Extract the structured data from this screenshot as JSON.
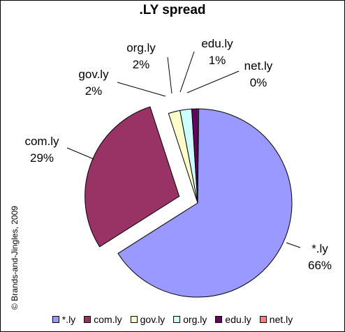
{
  "chart_data": {
    "type": "pie",
    "title": ".LY spread",
    "copyright": "© Brands-and-Jingles, 2009",
    "slices": [
      {
        "label": "*.ly",
        "value": 66,
        "value_label": "66%",
        "color": "#9999ff",
        "exploded": false
      },
      {
        "label": "com.ly",
        "value": 29,
        "value_label": "29%",
        "color": "#993366",
        "exploded": true
      },
      {
        "label": "gov.ly",
        "value": 2,
        "value_label": "2%",
        "color": "#ffffcc",
        "exploded": false
      },
      {
        "label": "org.ly",
        "value": 2,
        "value_label": "2%",
        "color": "#ccffff",
        "exploded": false
      },
      {
        "label": "edu.ly",
        "value": 1,
        "value_label": "1%",
        "color": "#660066",
        "exploded": false
      },
      {
        "label": "net.ly",
        "value": 0,
        "value_label": "0%",
        "color": "#ff8080",
        "exploded": false
      }
    ],
    "legend_position": "bottom"
  }
}
